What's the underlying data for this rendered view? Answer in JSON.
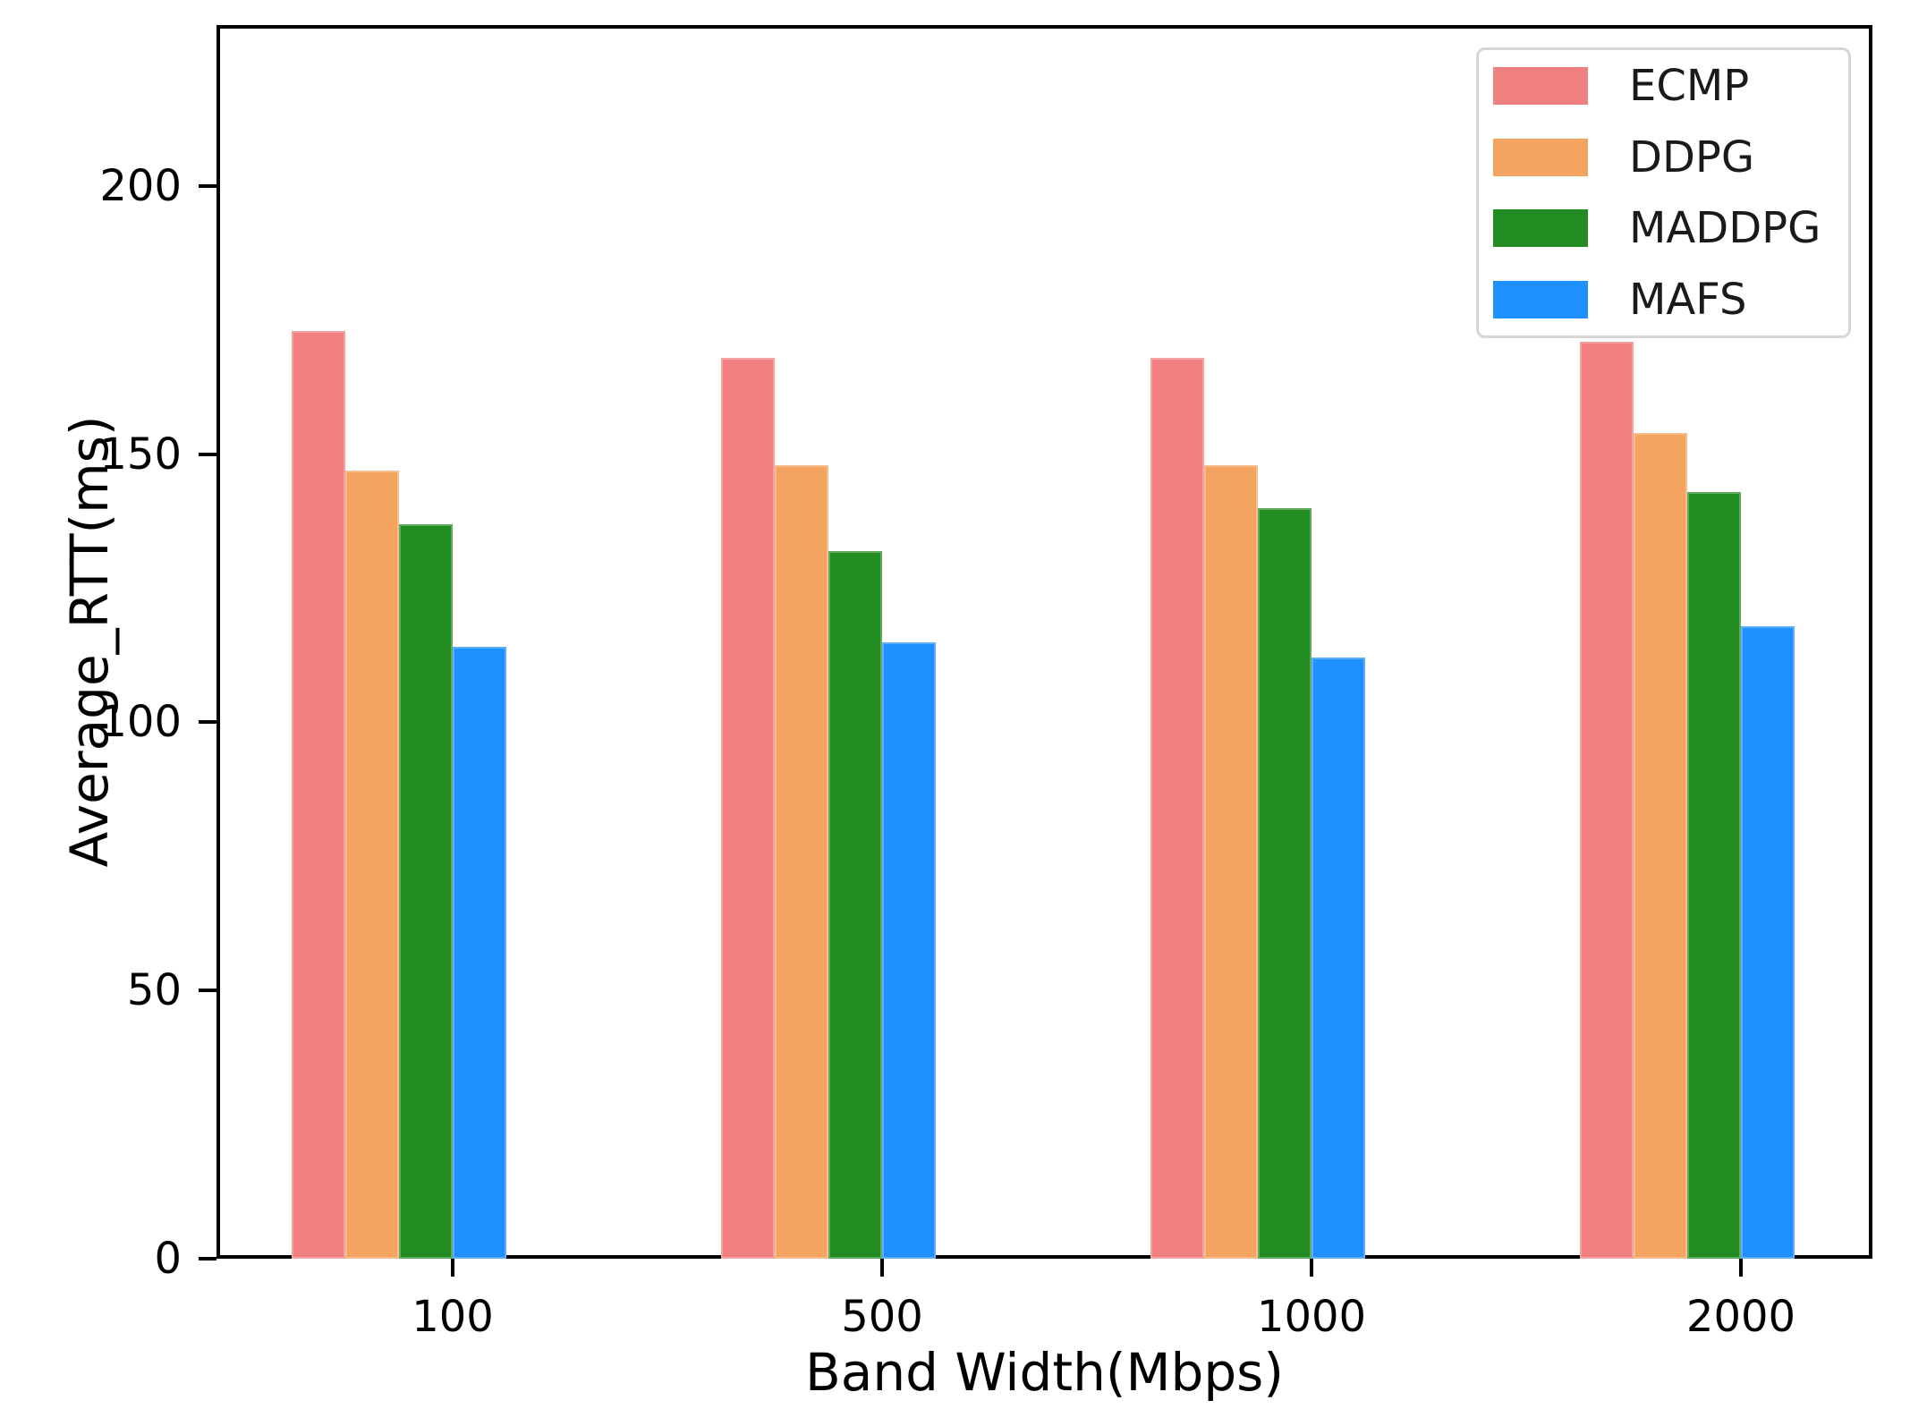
{
  "chart_data": {
    "type": "bar",
    "title": "",
    "xlabel": "Band Width(Mbps)",
    "ylabel": "Average_RTT(ms)",
    "categories": [
      "100",
      "500",
      "1000",
      "2000"
    ],
    "series": [
      {
        "name": "ECMP",
        "color": "#F08080",
        "values": [
          173,
          168,
          168,
          171
        ]
      },
      {
        "name": "DDPG",
        "color": "#F4A460",
        "values": [
          147,
          148,
          148,
          154
        ]
      },
      {
        "name": "MADDPG",
        "color": "#228B22",
        "values": [
          137,
          132,
          140,
          143
        ]
      },
      {
        "name": "MAFS",
        "color": "#1E90FF",
        "values": [
          114,
          115,
          112,
          118
        ]
      }
    ],
    "ylim": [
      0,
      230
    ],
    "yticks": [
      0,
      50,
      100,
      150,
      200
    ],
    "legend": {
      "position": "top-right",
      "entries": [
        "ECMP",
        "DDPG",
        "MADDPG",
        "MAFS"
      ]
    },
    "grid": false,
    "axis_color": "#000000",
    "background_color": "#ffffff"
  }
}
